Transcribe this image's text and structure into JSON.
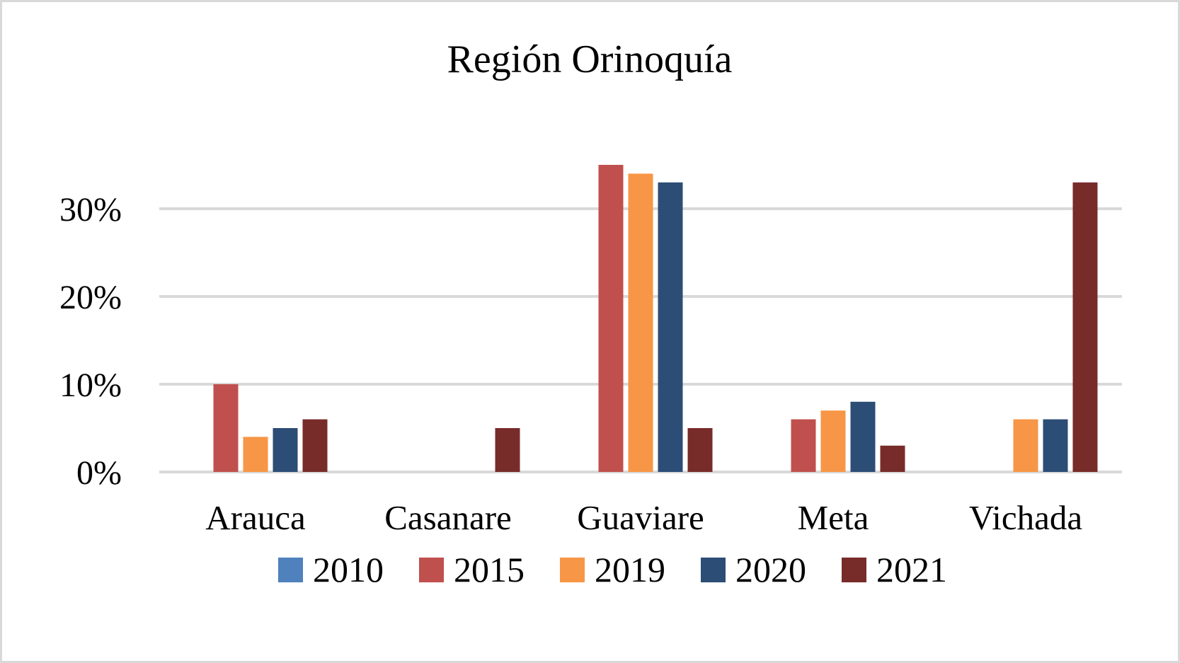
{
  "chart_data": {
    "type": "bar",
    "title": "Región Orinoquía",
    "xlabel": "",
    "ylabel": "",
    "categories": [
      "Arauca",
      "Casanare",
      "Guaviare",
      "Meta",
      "Vichada"
    ],
    "series": [
      {
        "name": "2010",
        "color": "#4f81bd",
        "values": [
          0,
          0,
          0,
          0,
          0
        ]
      },
      {
        "name": "2015",
        "color": "#c0504d",
        "values": [
          10,
          0,
          35,
          6,
          0
        ]
      },
      {
        "name": "2019",
        "color": "#f79646",
        "values": [
          4,
          0,
          34,
          7,
          6
        ]
      },
      {
        "name": "2020",
        "color": "#2c4d75",
        "values": [
          5,
          0,
          33,
          8,
          6
        ]
      },
      {
        "name": "2021",
        "color": "#772c2a",
        "values": [
          6,
          5,
          5,
          3,
          33
        ]
      }
    ],
    "y_ticks": [
      {
        "value": 0,
        "label": "0%"
      },
      {
        "value": 10,
        "label": "10%"
      },
      {
        "value": 20,
        "label": "20%"
      },
      {
        "value": 30,
        "label": "30%"
      }
    ],
    "ylim": [
      0,
      35
    ],
    "value_unit": "%",
    "grid": true,
    "legend_position": "bottom",
    "colors": {
      "gridline": "#d9d9d9",
      "border": "#d9d9d9",
      "text": "#000000"
    }
  }
}
